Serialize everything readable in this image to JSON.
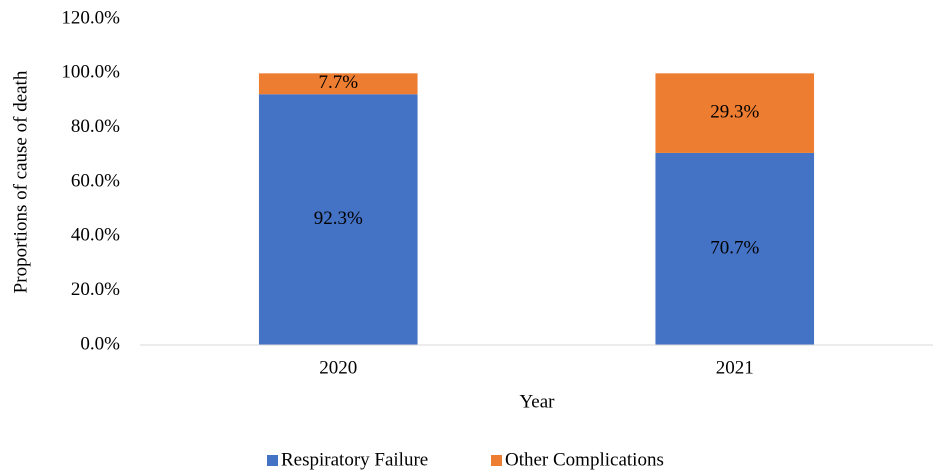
{
  "chart_data": {
    "type": "stacked_bar",
    "x_label": "Year",
    "y_label": "Proportions of cause of death",
    "categories": [
      "2020",
      "2021"
    ],
    "series": [
      {
        "name": "Respiratory Failure",
        "color": "#4472c4",
        "values": [
          92.3,
          70.7
        ],
        "value_labels": [
          "92.3%",
          "70.7%"
        ]
      },
      {
        "name": "Other Complications",
        "color": "#ed7d31",
        "values": [
          7.7,
          29.3
        ],
        "value_labels": [
          "7.7%",
          "29.3%"
        ]
      }
    ],
    "ylim": [
      0,
      120
    ],
    "yticks": [
      {
        "value": 0,
        "label": "0.0%"
      },
      {
        "value": 20,
        "label": "20.0%"
      },
      {
        "value": 40,
        "label": "40.0%"
      },
      {
        "value": 60,
        "label": "60.0%"
      },
      {
        "value": 80,
        "label": "80.0%"
      },
      {
        "value": 100,
        "label": "100.0%"
      },
      {
        "value": 120,
        "label": "120.0%"
      }
    ],
    "grid": false,
    "legend": "bottom"
  }
}
